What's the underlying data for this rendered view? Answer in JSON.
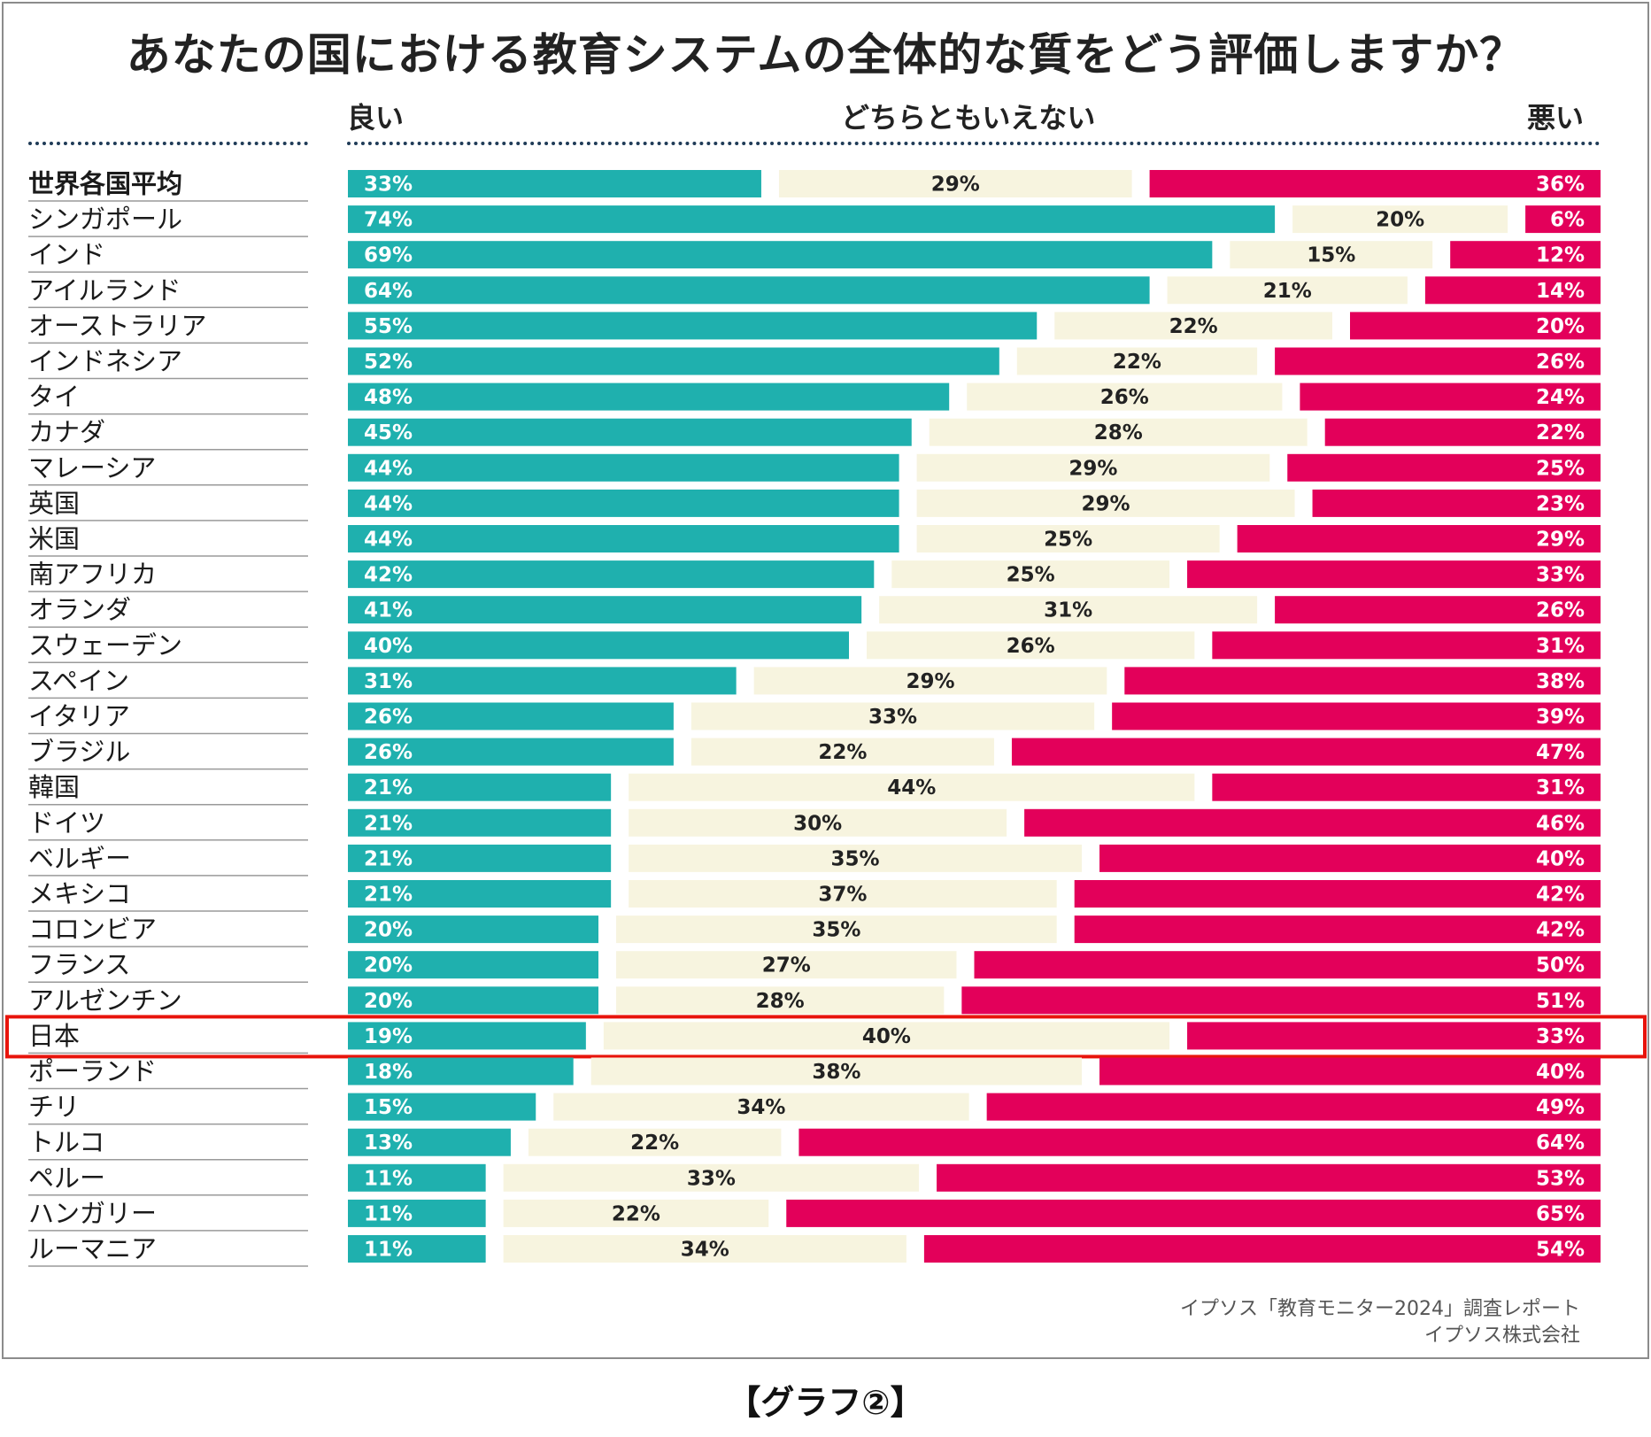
{
  "title": "あなたの国における教育システムの全体的な質をどう評価しますか？",
  "headers": {
    "good": "良い",
    "neutral": "どちらともいえない",
    "bad": "悪い"
  },
  "source": {
    "line1": "イプソス「教育モニター2024」調査レポート",
    "line2": "イプソス株式会社"
  },
  "caption": "【グラフ②】",
  "colors": {
    "good": "#1fb0ae",
    "neutral": "#f7f4df",
    "bad": "#e3005a",
    "highlight": "#e8140c",
    "divider": "#9a9a9a"
  },
  "highlight_row": "日本",
  "chart_data": {
    "type": "bar",
    "orientation": "horizontal",
    "stacked": true,
    "title": "あなたの国における教育システムの全体的な質をどう評価しますか？",
    "categories": [
      "世界各国平均",
      "シンガポール",
      "インド",
      "アイルランド",
      "オーストラリア",
      "インドネシア",
      "タイ",
      "カナダ",
      "マレーシア",
      "英国",
      "米国",
      "南アフリカ",
      "オランダ",
      "スウェーデン",
      "スペイン",
      "イタリア",
      "ブラジル",
      "韓国",
      "ドイツ",
      "ベルギー",
      "メキシコ",
      "コロンビア",
      "フランス",
      "アルゼンチン",
      "日本",
      "ポーランド",
      "チリ",
      "トルコ",
      "ペルー",
      "ハンガリー",
      "ルーマニア"
    ],
    "series": [
      {
        "name": "良い",
        "values": [
          33,
          74,
          69,
          64,
          55,
          52,
          48,
          45,
          44,
          44,
          44,
          42,
          41,
          40,
          31,
          26,
          26,
          21,
          21,
          21,
          21,
          20,
          20,
          20,
          19,
          18,
          15,
          13,
          11,
          11,
          11
        ]
      },
      {
        "name": "どちらともいえない",
        "values": [
          29,
          20,
          15,
          21,
          22,
          22,
          26,
          28,
          29,
          29,
          25,
          25,
          31,
          26,
          29,
          33,
          22,
          44,
          30,
          35,
          37,
          35,
          27,
          28,
          40,
          38,
          34,
          22,
          33,
          22,
          34
        ]
      },
      {
        "name": "悪い",
        "values": [
          36,
          6,
          12,
          14,
          20,
          26,
          24,
          22,
          25,
          23,
          29,
          33,
          26,
          31,
          38,
          39,
          47,
          31,
          46,
          40,
          42,
          42,
          50,
          51,
          33,
          40,
          49,
          64,
          53,
          65,
          54
        ]
      }
    ],
    "value_suffix": "%",
    "xlim": [
      0,
      100
    ],
    "legend": "top"
  }
}
